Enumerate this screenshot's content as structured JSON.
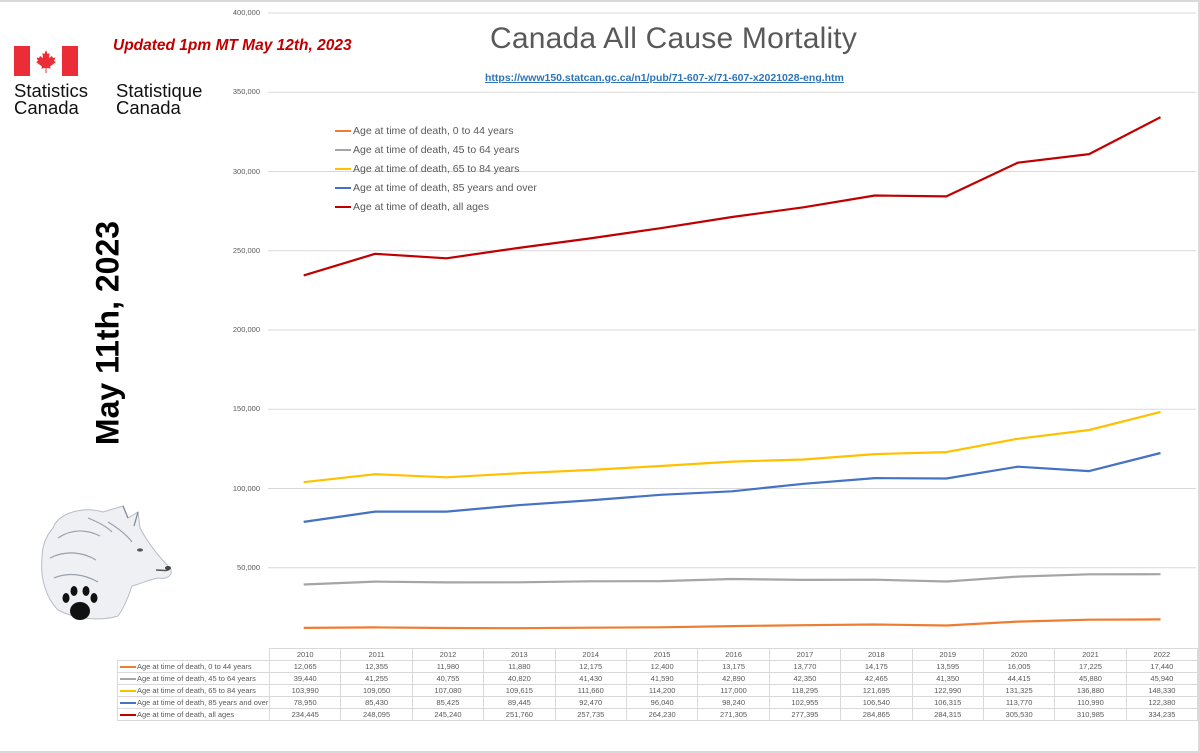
{
  "header": {
    "updated_note": "Updated 1pm MT May 12th, 2023",
    "source_link": "https://www150.statcan.gc.ca/n1/pub/71-607-x/71-607-x2021028-eng.htm",
    "rotated_date": "May 11th, 2023"
  },
  "logo": {
    "english": [
      "Statistics",
      "Canada"
    ],
    "french": [
      "Statistique",
      "Canada"
    ],
    "flag_red": "#eb2d37"
  },
  "decor": {
    "wolf_image": "wolf-head-with-paw-print-icon"
  },
  "chart_data": {
    "type": "line",
    "title": "Canada All Cause Mortality",
    "xlabel": "",
    "ylabel": "",
    "ylim": [
      0,
      400000
    ],
    "yticks": [
      0,
      50000,
      100000,
      150000,
      200000,
      250000,
      300000,
      350000,
      400000
    ],
    "ytick_labels": [
      "",
      "50,000",
      "100,000",
      "150,000",
      "200,000",
      "250,000",
      "300,000",
      "350,000",
      "400,000"
    ],
    "grid": true,
    "legend_position": "top-left",
    "categories": [
      "2010",
      "2011",
      "2012",
      "2013",
      "2014",
      "2015",
      "2016",
      "2017",
      "2018",
      "2019",
      "2020",
      "2021",
      "2022"
    ],
    "series": [
      {
        "name": "Age at time of death, 0 to 44 years",
        "color": "#ed7d31",
        "values": [
          12065,
          12355,
          11980,
          11880,
          12175,
          12400,
          13175,
          13770,
          14175,
          13595,
          16005,
          17225,
          17440
        ],
        "labels": [
          "12,065",
          "12,355",
          "11,980",
          "11,880",
          "12,175",
          "12,400",
          "13,175",
          "13,770",
          "14,175",
          "13,595",
          "16,005",
          "17,225",
          "17,440"
        ]
      },
      {
        "name": "Age at time of death, 45 to 64 years",
        "color": "#a5a5a5",
        "values": [
          39440,
          41255,
          40755,
          40820,
          41430,
          41590,
          42890,
          42350,
          42465,
          41350,
          44415,
          45880,
          45940
        ],
        "labels": [
          "39,440",
          "41,255",
          "40,755",
          "40,820",
          "41,430",
          "41,590",
          "42,890",
          "42,350",
          "42,465",
          "41,350",
          "44,415",
          "45,880",
          "45,940"
        ]
      },
      {
        "name": "Age at time of death, 65 to 84 years",
        "color": "#ffc000",
        "values": [
          103990,
          109050,
          107080,
          109615,
          111660,
          114200,
          117000,
          118295,
          121695,
          122990,
          131325,
          136880,
          148330
        ],
        "labels": [
          "103,990",
          "109,050",
          "107,080",
          "109,615",
          "111,660",
          "114,200",
          "117,000",
          "118,295",
          "121,695",
          "122,990",
          "131,325",
          "136,880",
          "148,330"
        ]
      },
      {
        "name": "Age at time of death, 85 years and over",
        "color": "#4472c4",
        "values": [
          78950,
          85430,
          85425,
          89445,
          92470,
          96040,
          98240,
          102955,
          106540,
          106315,
          113770,
          110990,
          122380
        ],
        "labels": [
          "78,950",
          "85,430",
          "85,425",
          "89,445",
          "92,470",
          "96,040",
          "98,240",
          "102,955",
          "106,540",
          "106,315",
          "113,770",
          "110,990",
          "122,380"
        ]
      },
      {
        "name": "Age at time of death, all ages",
        "color": "#c00000",
        "values": [
          234445,
          248095,
          245240,
          251760,
          257735,
          264230,
          271305,
          277395,
          284865,
          284315,
          305530,
          310985,
          334235
        ],
        "labels": [
          "234,445",
          "248,095",
          "245,240",
          "251,760",
          "257,735",
          "264,230",
          "271,305",
          "277,395",
          "284,865",
          "284,315",
          "305,530",
          "310,985",
          "334,235"
        ]
      }
    ]
  }
}
